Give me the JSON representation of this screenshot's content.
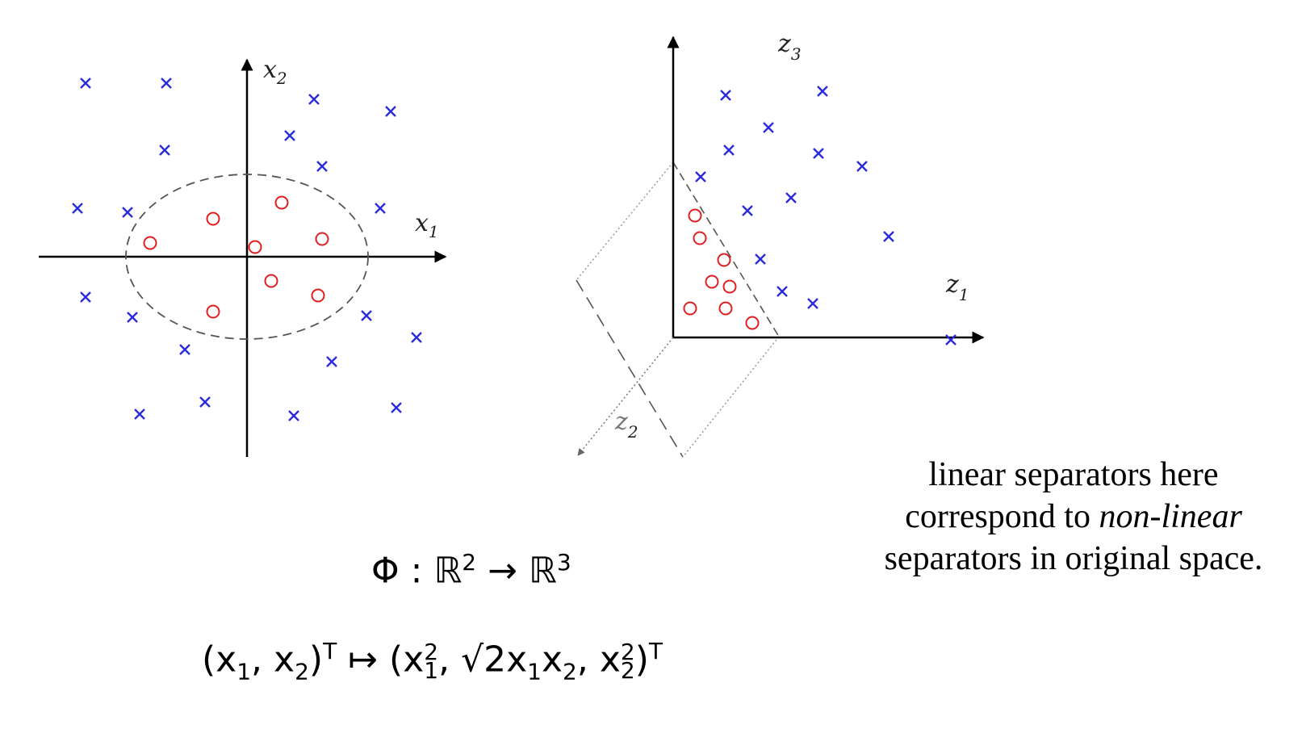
{
  "left_plot": {
    "x_axis_label": "x",
    "x_axis_sub": "1",
    "y_axis_label": "x",
    "y_axis_sub": "2",
    "crosses": [
      [
        -2.0,
        2.15
      ],
      [
        -1.0,
        2.15
      ],
      [
        0.83,
        1.95
      ],
      [
        1.78,
        1.8
      ],
      [
        0.53,
        1.5
      ],
      [
        -1.02,
        1.32
      ],
      [
        0.93,
        1.12
      ],
      [
        -2.1,
        0.6
      ],
      [
        -1.48,
        0.55
      ],
      [
        1.65,
        0.6
      ],
      [
        -2.0,
        -0.5
      ],
      [
        -1.42,
        -0.75
      ],
      [
        1.48,
        -0.73
      ],
      [
        2.1,
        -1.0
      ],
      [
        -0.77,
        -1.15
      ],
      [
        1.05,
        -1.3
      ],
      [
        -1.33,
        -1.95
      ],
      [
        -0.52,
        -1.8
      ],
      [
        0.58,
        -1.97
      ],
      [
        1.85,
        -1.87
      ]
    ],
    "circles": [
      [
        -1.2,
        0.17
      ],
      [
        -0.42,
        0.47
      ],
      [
        0.43,
        0.67
      ],
      [
        0.1,
        0.12
      ],
      [
        0.93,
        0.22
      ],
      [
        0.3,
        -0.3
      ],
      [
        0.88,
        -0.48
      ],
      [
        -0.42,
        -0.68
      ]
    ],
    "ellipse": {
      "rx": 1.5,
      "ry": 1.02
    },
    "colors": {
      "cross": "#2b2bdd",
      "circle": "#e02020",
      "axis": "#000000",
      "ellipse": "#555555"
    }
  },
  "right_plot": {
    "z1_label": "z",
    "z1_sub": "1",
    "z2_label": "z",
    "z2_sub": "2",
    "z3_label": "z",
    "z3_sub": "3",
    "crosses": [
      [
        899,
        118
      ],
      [
        1019,
        113
      ],
      [
        952,
        158
      ],
      [
        903,
        186
      ],
      [
        1014,
        190
      ],
      [
        1068,
        206
      ],
      [
        868,
        219
      ],
      [
        980,
        245
      ],
      [
        926,
        261
      ],
      [
        1101,
        293
      ],
      [
        942,
        321
      ],
      [
        969,
        361
      ],
      [
        1007,
        376
      ],
      [
        1178,
        421
      ]
    ],
    "circles": [
      [
        861,
        267
      ],
      [
        867,
        295
      ],
      [
        897,
        322
      ],
      [
        882,
        349
      ],
      [
        904,
        355
      ],
      [
        855,
        382
      ],
      [
        899,
        382
      ],
      [
        932,
        400
      ]
    ],
    "colors": {
      "cross": "#2b2bdd",
      "circle": "#e02020",
      "axis": "#000000",
      "plane": "#888888"
    }
  },
  "caption": {
    "line1": "linear separators here",
    "line2_prefix": "correspond to ",
    "line2_emph": "non-linear",
    "line3": "separators in original space."
  },
  "formula": {
    "phi": "Φ : ",
    "domain": "ℝ",
    "domain_exp": "2",
    "arrow": " → ",
    "codomain": "ℝ",
    "codomain_exp": "3",
    "lhs_open": "(",
    "lhs_x1": "x",
    "lhs_x1_sub": "1",
    "lhs_comma": ", ",
    "lhs_x2": "x",
    "lhs_x2_sub": "2",
    "lhs_close": ")",
    "lhs_T": "T",
    "mapsto": " ↦ ",
    "rhs_open": "(",
    "rhs_a": "x",
    "rhs_a_exp": "2",
    "rhs_a_sub": "1",
    "rhs_comma1": ", ",
    "rhs_sqrt": "√2",
    "rhs_b1": "x",
    "rhs_b1_sub": "1",
    "rhs_b2": "x",
    "rhs_b2_sub": "2",
    "rhs_comma2": ", ",
    "rhs_c": "x",
    "rhs_c_exp": "2",
    "rhs_c_sub": "2",
    "rhs_close": ")",
    "rhs_T": "T"
  }
}
